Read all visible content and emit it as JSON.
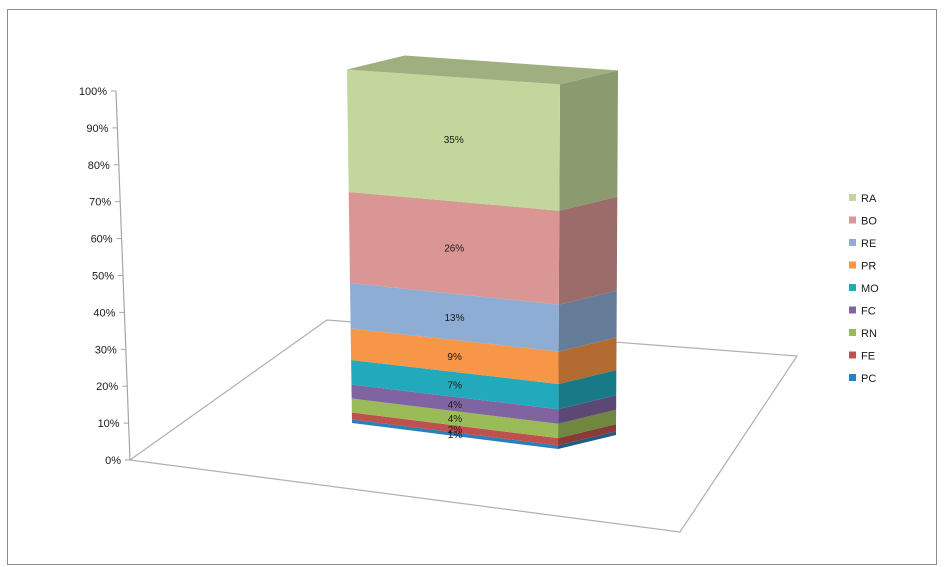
{
  "chart_data": {
    "type": "bar",
    "variant": "3d-100%-stacked-column",
    "title": "",
    "xlabel": "",
    "ylabel": "",
    "ylim": [
      0,
      100
    ],
    "y_ticks": [
      "0%",
      "10%",
      "20%",
      "30%",
      "40%",
      "50%",
      "60%",
      "70%",
      "80%",
      "90%",
      "100%"
    ],
    "grid": false,
    "legend_position": "right",
    "series": [
      {
        "name": "PC",
        "value": 1,
        "label": "1%",
        "color": "#2C7FB8"
      },
      {
        "name": "FE",
        "value": 2,
        "label": "2%",
        "color": "#C0504D"
      },
      {
        "name": "RN",
        "value": 4,
        "label": "4%",
        "color": "#9BBB59"
      },
      {
        "name": "FC",
        "value": 4,
        "label": "4%",
        "color": "#8064A2"
      },
      {
        "name": "MO",
        "value": 7,
        "label": "7%",
        "color": "#23A9BC"
      },
      {
        "name": "PR",
        "value": 9,
        "label": "9%",
        "color": "#F79646"
      },
      {
        "name": "RE",
        "value": 13,
        "label": "13%",
        "color": "#8EADD5"
      },
      {
        "name": "BO",
        "value": 26,
        "label": "26%",
        "color": "#D99694"
      },
      {
        "name": "RA",
        "value": 35,
        "label": "35%",
        "color": "#C3D69B"
      }
    ]
  }
}
